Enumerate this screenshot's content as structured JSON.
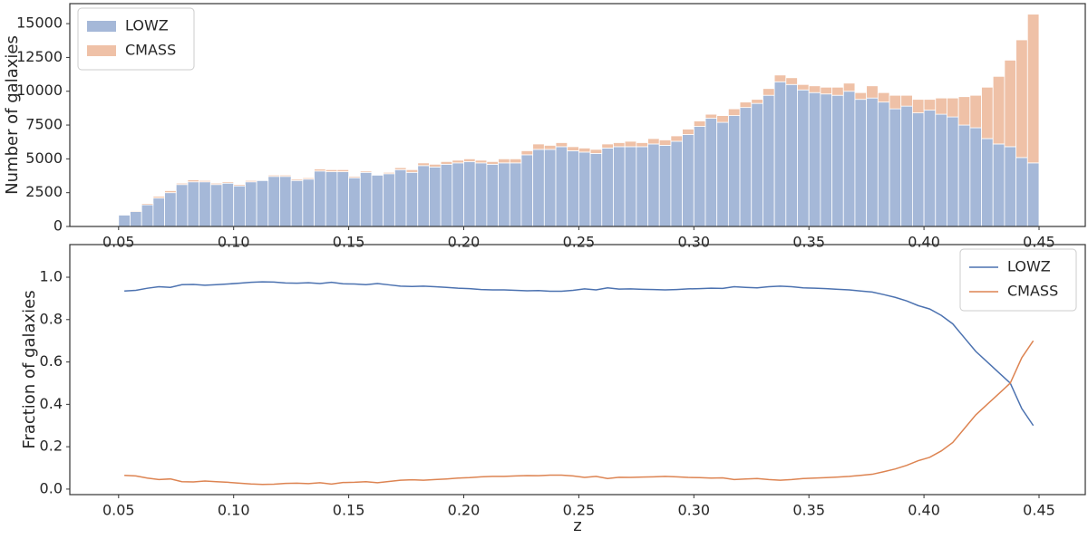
{
  "chart_data": [
    {
      "type": "histogram",
      "ylabel": "Number of galaxies",
      "legend": "upper left",
      "grid": false,
      "bins": [
        0.05,
        0.055,
        0.06,
        0.065,
        0.07,
        0.075,
        0.08,
        0.085,
        0.09,
        0.095,
        0.1,
        0.105,
        0.11,
        0.115,
        0.12,
        0.125,
        0.13,
        0.135,
        0.14,
        0.145,
        0.15,
        0.155,
        0.16,
        0.165,
        0.17,
        0.175,
        0.18,
        0.185,
        0.19,
        0.195,
        0.2,
        0.205,
        0.21,
        0.215,
        0.22,
        0.225,
        0.23,
        0.235,
        0.24,
        0.245,
        0.25,
        0.255,
        0.26,
        0.265,
        0.27,
        0.275,
        0.28,
        0.285,
        0.29,
        0.295,
        0.3,
        0.305,
        0.31,
        0.315,
        0.32,
        0.325,
        0.33,
        0.335,
        0.34,
        0.345,
        0.35,
        0.355,
        0.36,
        0.365,
        0.37,
        0.375,
        0.38,
        0.385,
        0.39,
        0.395,
        0.4,
        0.405,
        0.41,
        0.415,
        0.42,
        0.425,
        0.43,
        0.435,
        0.44,
        0.445,
        0.45
      ],
      "series": [
        {
          "name": "LOWZ",
          "color": "#a5b8d8",
          "values": [
            850,
            1100,
            1600,
            2100,
            2500,
            3100,
            3300,
            3300,
            3100,
            3200,
            3000,
            3300,
            3400,
            3700,
            3700,
            3400,
            3500,
            4100,
            4050,
            4050,
            3600,
            4000,
            3800,
            3900,
            4200,
            4000,
            4500,
            4400,
            4600,
            4700,
            4800,
            4700,
            4600,
            4700,
            4700,
            5300,
            5700,
            5700,
            5900,
            5600,
            5500,
            5400,
            5800,
            5900,
            5900,
            5900,
            6100,
            6000,
            6300,
            6800,
            7400,
            8000,
            7700,
            8200,
            8800,
            9100,
            9700,
            10700,
            10500,
            10100,
            9900,
            9800,
            9700,
            10000,
            9400,
            9500,
            9200,
            8700,
            8900,
            8400,
            8600,
            8300,
            8100,
            7500,
            7300,
            6500,
            6100,
            5900,
            5100,
            4700
          ]
        },
        {
          "name": "CMASS",
          "color": "#efc1a7",
          "values": [
            50,
            70,
            100,
            130,
            150,
            100,
            150,
            100,
            100,
            100,
            100,
            100,
            50,
            100,
            100,
            100,
            100,
            150,
            150,
            150,
            100,
            100,
            50,
            100,
            150,
            200,
            200,
            200,
            200,
            200,
            200,
            200,
            200,
            300,
            300,
            300,
            400,
            300,
            300,
            300,
            300,
            300,
            300,
            300,
            400,
            300,
            400,
            400,
            400,
            400,
            400,
            300,
            500,
            500,
            400,
            300,
            500,
            500,
            500,
            400,
            500,
            500,
            600,
            600,
            500,
            900,
            700,
            1000,
            800,
            1000,
            800,
            1200,
            1400,
            2100,
            2400,
            3800,
            5000,
            6400,
            8700,
            11000
          ]
        }
      ],
      "xlim": [
        0.0288,
        0.4701
      ],
      "ylim": [
        0,
        16480
      ],
      "xticks": [
        0.05,
        {
          "value": 0.1,
          "label": "0.10"
        },
        0.15,
        {
          "value": 0.2,
          "label": "0.20"
        },
        0.25,
        {
          "value": 0.3,
          "label": "0.30"
        },
        0.35,
        {
          "value": 0.4,
          "label": "0.40"
        },
        0.45
      ],
      "yticks": [
        0,
        2500,
        5000,
        7500,
        10000,
        12500,
        15000
      ]
    },
    {
      "type": "line",
      "ylabel": "Fraction of galaxies",
      "xlabel": "z",
      "legend": "upper right",
      "grid": false,
      "x": [
        0.0525,
        0.0575,
        0.0625,
        0.0675,
        0.0725,
        0.0775,
        0.0825,
        0.0875,
        0.0925,
        0.0975,
        0.1025,
        0.1075,
        0.1125,
        0.1175,
        0.1225,
        0.1275,
        0.1325,
        0.1375,
        0.1425,
        0.1475,
        0.1525,
        0.1575,
        0.1625,
        0.1675,
        0.1725,
        0.1775,
        0.1825,
        0.1875,
        0.1925,
        0.1975,
        0.2025,
        0.2075,
        0.2125,
        0.2175,
        0.2225,
        0.2275,
        0.2325,
        0.2375,
        0.2425,
        0.2475,
        0.2525,
        0.2575,
        0.2625,
        0.2675,
        0.2725,
        0.2775,
        0.2825,
        0.2875,
        0.2925,
        0.2975,
        0.3025,
        0.3075,
        0.3125,
        0.3175,
        0.3225,
        0.3275,
        0.3325,
        0.3375,
        0.3425,
        0.3475,
        0.3525,
        0.3575,
        0.3625,
        0.3675,
        0.3725,
        0.3775,
        0.3825,
        0.3875,
        0.3925,
        0.3975,
        0.4025,
        0.4075,
        0.4125,
        0.4175,
        0.4225,
        0.4275,
        0.4325,
        0.4375,
        0.4425,
        0.4475
      ],
      "series": [
        {
          "name": "LOWZ",
          "color": "#4c72b0",
          "values": [
            0.935,
            0.938,
            0.948,
            0.955,
            0.952,
            0.965,
            0.966,
            0.962,
            0.965,
            0.968,
            0.972,
            0.976,
            0.978,
            0.977,
            0.973,
            0.972,
            0.974,
            0.97,
            0.976,
            0.969,
            0.968,
            0.965,
            0.97,
            0.964,
            0.958,
            0.956,
            0.958,
            0.955,
            0.952,
            0.948,
            0.946,
            0.942,
            0.94,
            0.94,
            0.938,
            0.936,
            0.937,
            0.934,
            0.934,
            0.938,
            0.945,
            0.94,
            0.95,
            0.944,
            0.945,
            0.943,
            0.942,
            0.94,
            0.942,
            0.945,
            0.946,
            0.948,
            0.947,
            0.955,
            0.952,
            0.95,
            0.955,
            0.958,
            0.955,
            0.95,
            0.948,
            0.946,
            0.943,
            0.94,
            0.935,
            0.93,
            0.918,
            0.905,
            0.888,
            0.866,
            0.85,
            0.82,
            0.78,
            0.715,
            0.65,
            0.6,
            0.55,
            0.5,
            0.38,
            0.3
          ]
        },
        {
          "name": "CMASS",
          "color": "#dd8452",
          "values": [
            0.065,
            0.062,
            0.052,
            0.045,
            0.048,
            0.035,
            0.034,
            0.038,
            0.035,
            0.032,
            0.028,
            0.024,
            0.022,
            0.023,
            0.027,
            0.028,
            0.026,
            0.03,
            0.024,
            0.031,
            0.032,
            0.035,
            0.03,
            0.036,
            0.042,
            0.044,
            0.042,
            0.045,
            0.048,
            0.052,
            0.054,
            0.058,
            0.06,
            0.06,
            0.062,
            0.064,
            0.063,
            0.066,
            0.066,
            0.062,
            0.055,
            0.06,
            0.05,
            0.056,
            0.055,
            0.057,
            0.058,
            0.06,
            0.058,
            0.055,
            0.054,
            0.052,
            0.053,
            0.045,
            0.048,
            0.05,
            0.045,
            0.042,
            0.045,
            0.05,
            0.052,
            0.054,
            0.057,
            0.06,
            0.065,
            0.07,
            0.082,
            0.095,
            0.112,
            0.134,
            0.15,
            0.18,
            0.22,
            0.285,
            0.35,
            0.4,
            0.45,
            0.5,
            0.62,
            0.7
          ]
        }
      ],
      "xlim": [
        0.0288,
        0.4701
      ],
      "ylim": [
        -0.026,
        1.154
      ],
      "xticks": [
        0.05,
        {
          "value": 0.1,
          "label": "0.10"
        },
        0.15,
        {
          "value": 0.2,
          "label": "0.20"
        },
        0.25,
        {
          "value": 0.3,
          "label": "0.30"
        },
        0.35,
        {
          "value": 0.4,
          "label": "0.40"
        },
        0.45
      ],
      "yticks": [
        {
          "value": 0,
          "label": "0.0"
        },
        0.2,
        0.4,
        0.6,
        0.8,
        {
          "value": 1,
          "label": "1.0"
        }
      ]
    }
  ]
}
